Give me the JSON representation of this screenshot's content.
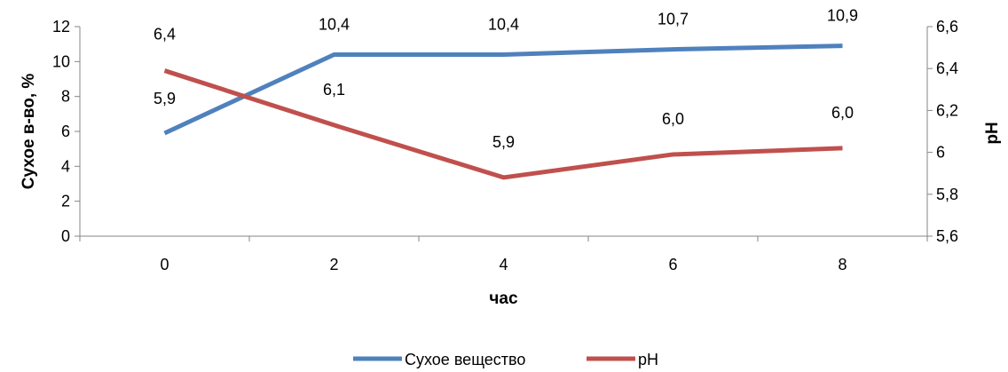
{
  "chart_data": {
    "type": "line",
    "x": [
      0,
      2,
      4,
      6,
      8
    ],
    "xlabel": "час",
    "ylabel": "Сухое в-во, %",
    "y2label": "pH",
    "ylim": [
      0,
      12
    ],
    "yticks": [
      "0",
      "2",
      "4",
      "6",
      "8",
      "10",
      "12"
    ],
    "y2lim": [
      5.6,
      6.6
    ],
    "y2ticks": [
      "5,6",
      "5,8",
      "6",
      "6,2",
      "6,4",
      "6,6"
    ],
    "grid": false,
    "legend_position": "bottom",
    "series": [
      {
        "name": "Сухое вещество",
        "axis": "left",
        "color": "#4F81BD",
        "values": [
          5.9,
          10.4,
          10.4,
          10.7,
          10.9
        ],
        "labels": [
          "5,9",
          "10,4",
          "10,4",
          "10,7",
          "10,9"
        ]
      },
      {
        "name": "pH",
        "axis": "right",
        "color": "#C0504D",
        "values": [
          6.39,
          6.13,
          5.88,
          5.99,
          6.02
        ],
        "labels": [
          "6,4",
          "6,1",
          "5,9",
          "6,0",
          "6,0"
        ]
      }
    ]
  }
}
